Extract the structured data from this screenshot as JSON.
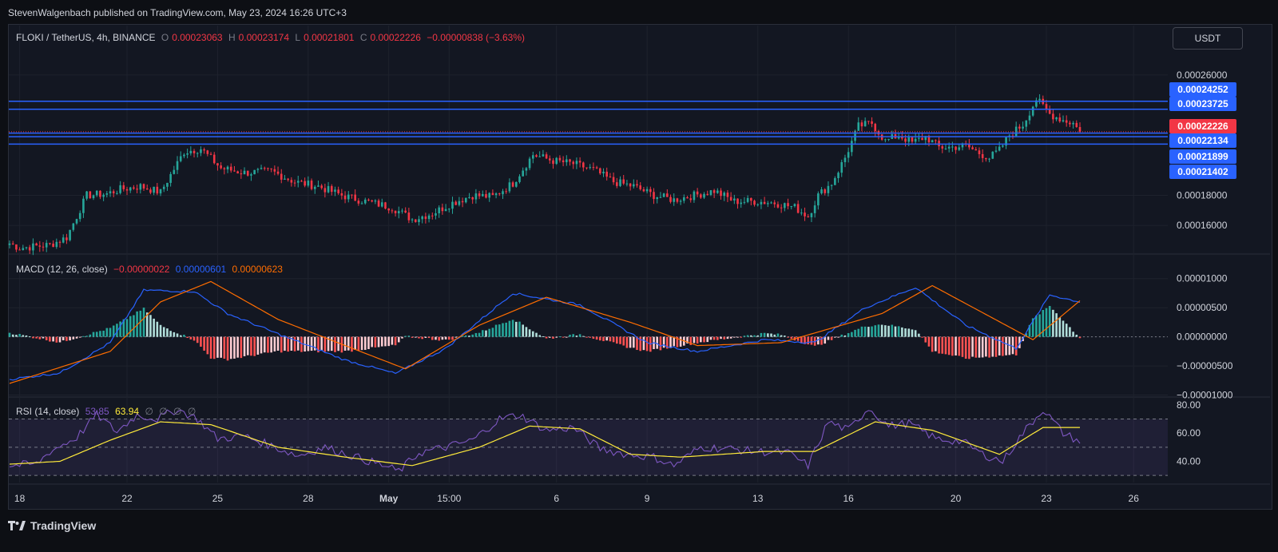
{
  "publisher_line": "StevenWalgenbach published on TradingView.com, May 23, 2024 16:26 UTC+3",
  "brand": "TradingView",
  "currency_button": "USDT",
  "price_legend": {
    "symbol": "FLOKI / TetherUS, 4h, BINANCE",
    "o_label": "O",
    "o": "0.00023063",
    "h_label": "H",
    "h": "0.00023174",
    "l_label": "L",
    "l": "0.00021801",
    "c_label": "C",
    "c": "0.00022226",
    "change": "−0.00000838 (−3.63%)"
  },
  "macd_legend": {
    "title": "MACD (12, 26, close)",
    "hist": "−0.00000022",
    "macd": "0.00000601",
    "signal": "0.00000623"
  },
  "rsi_legend": {
    "title": "RSI (14, close)",
    "rsi": "53.85",
    "ma": "63.94",
    "extras": [
      "∅",
      "∅",
      "∅",
      "∅"
    ]
  },
  "colors": {
    "up": "#26a69a",
    "down": "#f23645",
    "level_line": "#2962ff",
    "macd_line": "#2962ff",
    "signal_line": "#ff6d00",
    "rsi_line": "#7e57c2",
    "rsi_ma": "#ffeb3b"
  },
  "chart_data": [
    {
      "type": "candlestick",
      "title": "FLOKI / TetherUS, 4h, BINANCE",
      "x_ticks": [
        "18",
        "22",
        "25",
        "28",
        "May",
        "15:00",
        "6",
        "9",
        "13",
        "16",
        "20",
        "23",
        "26"
      ],
      "y_ticks": [
        "0.00026000",
        "0.00018000",
        "0.00016000"
      ],
      "ylim": [
        0.000142,
        0.000278
      ],
      "last_price": "0.00022226",
      "horizontal_levels": [
        "0.00024252",
        "0.00023725",
        "0.00022134",
        "0.00021899",
        "0.00021402"
      ],
      "anchors": [
        [
          0,
          0.000148
        ],
        [
          3,
          0.000145
        ],
        [
          12,
          0.000147
        ],
        [
          17,
          0.000152
        ],
        [
          20,
          0.000166
        ],
        [
          23,
          0.00018
        ],
        [
          29,
          0.000181
        ],
        [
          33,
          0.000184
        ],
        [
          39,
          0.000186
        ],
        [
          45,
          0.000182
        ],
        [
          52,
          0.000209
        ],
        [
          57,
          0.000211
        ],
        [
          63,
          0.000198
        ],
        [
          70,
          0.000195
        ],
        [
          78,
          0.000196
        ],
        [
          85,
          0.000189
        ],
        [
          92,
          0.000186
        ],
        [
          99,
          0.00018
        ],
        [
          106,
          0.000176
        ],
        [
          114,
          0.000172
        ],
        [
          120,
          0.000164
        ],
        [
          126,
          0.000168
        ],
        [
          132,
          0.000175
        ],
        [
          138,
          0.00018
        ],
        [
          144,
          0.000179
        ],
        [
          150,
          0.000188
        ],
        [
          156,
          0.000207
        ],
        [
          162,
          0.000203
        ],
        [
          168,
          0.000201
        ],
        [
          174,
          0.000197
        ],
        [
          180,
          0.000189
        ],
        [
          186,
          0.000186
        ],
        [
          192,
          0.00018
        ],
        [
          198,
          0.000177
        ],
        [
          204,
          0.00018
        ],
        [
          210,
          0.000183
        ],
        [
          216,
          0.000176
        ],
        [
          222,
          0.000176
        ],
        [
          228,
          0.000175
        ],
        [
          234,
          0.000172
        ],
        [
          238,
          0.000166
        ],
        [
          241,
          0.00018
        ],
        [
          245,
          0.000188
        ],
        [
          249,
          0.000205
        ],
        [
          253,
          0.000226
        ],
        [
          257,
          0.000228
        ],
        [
          261,
          0.000216
        ],
        [
          265,
          0.00022
        ],
        [
          269,
          0.000215
        ],
        [
          273,
          0.000219
        ],
        [
          277,
          0.000212
        ],
        [
          281,
          0.000212
        ],
        [
          285,
          0.000213
        ],
        [
          289,
          0.000208
        ],
        [
          292,
          0.000205
        ],
        [
          295,
          0.00021
        ],
        [
          298,
          0.00022
        ],
        [
          302,
          0.000227
        ],
        [
          306,
          0.000244
        ],
        [
          310,
          0.000234
        ],
        [
          314,
          0.00023
        ],
        [
          317,
          0.000228
        ],
        [
          319,
          0.000222
        ]
      ]
    },
    {
      "type": "macd",
      "title": "MACD (12, 26, close)",
      "y_ticks": [
        "0.00001000",
        "0.00000500",
        "0.00000000",
        "−0.00000500",
        "−0.00001000"
      ],
      "ylim": [
        -1.02e-05,
        1.12e-05
      ],
      "macd_anchors": [
        [
          0,
          -7.3e-06
        ],
        [
          15,
          -6.2e-06
        ],
        [
          30,
          -1e-06
        ],
        [
          40,
          8e-06
        ],
        [
          55,
          7.8e-06
        ],
        [
          65,
          4e-06
        ],
        [
          80,
          5e-07
        ],
        [
          100,
          -4e-06
        ],
        [
          115,
          -6.3e-06
        ],
        [
          130,
          -2e-06
        ],
        [
          150,
          7.5e-06
        ],
        [
          170,
          5.5e-06
        ],
        [
          190,
          -1e-06
        ],
        [
          205,
          -2.5e-06
        ],
        [
          225,
          -5e-07
        ],
        [
          240,
          -1e-06
        ],
        [
          255,
          5e-06
        ],
        [
          270,
          8.5e-06
        ],
        [
          285,
          2e-06
        ],
        [
          300,
          -2e-06
        ],
        [
          310,
          7.2e-06
        ],
        [
          319,
          6e-06
        ]
      ],
      "signal_anchors": [
        [
          0,
          -8e-06
        ],
        [
          30,
          -2.5e-06
        ],
        [
          45,
          6e-06
        ],
        [
          60,
          9.5e-06
        ],
        [
          80,
          3e-06
        ],
        [
          100,
          -1.5e-06
        ],
        [
          118,
          -5.5e-06
        ],
        [
          140,
          2e-06
        ],
        [
          160,
          6.8e-06
        ],
        [
          185,
          2.5e-06
        ],
        [
          205,
          -1.5e-06
        ],
        [
          230,
          -1e-06
        ],
        [
          260,
          4e-06
        ],
        [
          275,
          8.8e-06
        ],
        [
          305,
          -5e-07
        ],
        [
          319,
          6.2e-06
        ]
      ],
      "histogram_last": -2.2e-07
    },
    {
      "type": "rsi",
      "title": "RSI (14, close)",
      "y_ticks": [
        "80.00",
        "60.00",
        "40.00"
      ],
      "ylim": [
        25,
        85
      ],
      "bands": [
        70,
        50,
        30
      ],
      "rsi_anchors": [
        [
          0,
          37
        ],
        [
          8,
          38
        ],
        [
          12,
          47
        ],
        [
          20,
          57
        ],
        [
          26,
          73
        ],
        [
          32,
          61
        ],
        [
          38,
          73
        ],
        [
          44,
          70
        ],
        [
          50,
          77
        ],
        [
          56,
          70
        ],
        [
          62,
          56
        ],
        [
          70,
          58
        ],
        [
          78,
          51
        ],
        [
          86,
          44
        ],
        [
          94,
          50
        ],
        [
          102,
          44
        ],
        [
          110,
          38
        ],
        [
          116,
          33
        ],
        [
          122,
          46
        ],
        [
          130,
          50
        ],
        [
          138,
          55
        ],
        [
          146,
          70
        ],
        [
          152,
          73
        ],
        [
          160,
          62
        ],
        [
          168,
          64
        ],
        [
          176,
          49
        ],
        [
          184,
          45
        ],
        [
          192,
          43
        ],
        [
          198,
          37
        ],
        [
          206,
          50
        ],
        [
          214,
          49
        ],
        [
          222,
          47
        ],
        [
          232,
          46
        ],
        [
          238,
          37
        ],
        [
          244,
          68
        ],
        [
          250,
          62
        ],
        [
          256,
          78
        ],
        [
          262,
          65
        ],
        [
          268,
          67
        ],
        [
          276,
          56
        ],
        [
          284,
          54
        ],
        [
          290,
          45
        ],
        [
          296,
          40
        ],
        [
          302,
          60
        ],
        [
          308,
          77
        ],
        [
          314,
          60
        ],
        [
          319,
          54
        ]
      ],
      "ma_anchors": [
        [
          0,
          38
        ],
        [
          15,
          40
        ],
        [
          30,
          55
        ],
        [
          45,
          68
        ],
        [
          60,
          66
        ],
        [
          80,
          50
        ],
        [
          100,
          43
        ],
        [
          120,
          37
        ],
        [
          140,
          50
        ],
        [
          155,
          65
        ],
        [
          170,
          63
        ],
        [
          185,
          45
        ],
        [
          200,
          43
        ],
        [
          225,
          47
        ],
        [
          240,
          47
        ],
        [
          258,
          68
        ],
        [
          275,
          62
        ],
        [
          295,
          45
        ],
        [
          308,
          64
        ],
        [
          319,
          64
        ]
      ]
    }
  ]
}
